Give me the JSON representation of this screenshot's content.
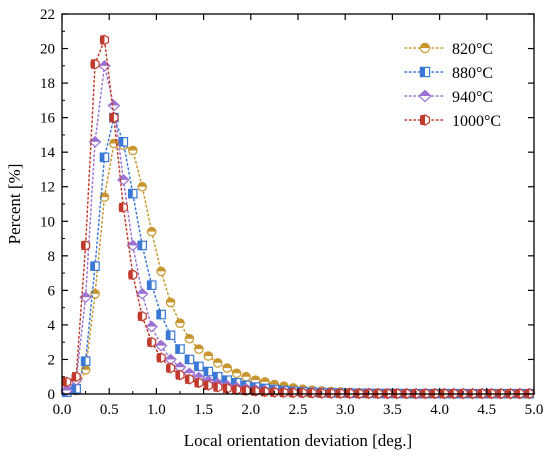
{
  "chart_data": {
    "type": "scatter",
    "xlabel": "Local orientation deviation [deg.]",
    "ylabel": "Percent [%]",
    "xlim": [
      0,
      5
    ],
    "ylim": [
      0,
      22
    ],
    "xticks": [
      "0.0",
      "0.5",
      "1.0",
      "1.5",
      "2.0",
      "2.5",
      "3.0",
      "3.5",
      "4.0",
      "4.5",
      "5.0"
    ],
    "yticks": [
      "0",
      "2",
      "4",
      "6",
      "8",
      "10",
      "12",
      "14",
      "16",
      "18",
      "20",
      "22"
    ],
    "grid": false,
    "legend_position": "top-right",
    "x": [
      0.05,
      0.15,
      0.25,
      0.35,
      0.45,
      0.55,
      0.65,
      0.75,
      0.85,
      0.95,
      1.05,
      1.15,
      1.25,
      1.35,
      1.45,
      1.55,
      1.65,
      1.75,
      1.85,
      1.95,
      2.05,
      2.15,
      2.25,
      2.35,
      2.45,
      2.55,
      2.65,
      2.75,
      2.85,
      2.95,
      3.05,
      3.15,
      3.25,
      3.35,
      3.45,
      3.55,
      3.65,
      3.75,
      3.85,
      3.95,
      4.05,
      4.15,
      4.25,
      4.35,
      4.45,
      4.55,
      4.65,
      4.75,
      4.85,
      4.95
    ],
    "series": [
      {
        "name": "820°C",
        "color": "#c8962e",
        "marker": "circle-half",
        "values": [
          0.1,
          0.2,
          1.4,
          5.8,
          11.4,
          14.5,
          14.4,
          14.1,
          12.0,
          9.4,
          7.1,
          5.3,
          4.1,
          3.2,
          2.6,
          2.2,
          1.8,
          1.5,
          1.2,
          1.0,
          0.8,
          0.7,
          0.55,
          0.45,
          0.35,
          0.28,
          0.22,
          0.18,
          0.15,
          0.12,
          0.1,
          0.08,
          0.07,
          0.06,
          0.05,
          0.05,
          0.04,
          0.04,
          0.03,
          0.03,
          0.03,
          0.02,
          0.02,
          0.02,
          0.02,
          0.02,
          0.02,
          0.02,
          0.02,
          0.02
        ]
      },
      {
        "name": "880°C",
        "color": "#3a78d6",
        "marker": "square-half",
        "values": [
          0.1,
          0.3,
          1.9,
          7.4,
          13.7,
          16.0,
          14.6,
          11.6,
          8.6,
          6.3,
          4.6,
          3.4,
          2.6,
          2.0,
          1.6,
          1.3,
          1.0,
          0.8,
          0.65,
          0.5,
          0.4,
          0.32,
          0.26,
          0.2,
          0.16,
          0.13,
          0.1,
          0.08,
          0.07,
          0.06,
          0.05,
          0.04,
          0.04,
          0.03,
          0.03,
          0.03,
          0.02,
          0.02,
          0.02,
          0.02,
          0.02,
          0.02,
          0.02,
          0.02,
          0.02,
          0.02,
          0.02,
          0.02,
          0.02,
          0.02
        ]
      },
      {
        "name": "940°C",
        "color": "#9b72d4",
        "marker": "diamond-half",
        "values": [
          0.2,
          0.8,
          5.6,
          14.6,
          19.0,
          16.7,
          12.4,
          8.6,
          5.8,
          3.9,
          2.8,
          2.0,
          1.55,
          1.2,
          0.95,
          0.75,
          0.6,
          0.48,
          0.38,
          0.3,
          0.24,
          0.19,
          0.15,
          0.12,
          0.1,
          0.08,
          0.07,
          0.06,
          0.05,
          0.04,
          0.04,
          0.03,
          0.03,
          0.03,
          0.02,
          0.02,
          0.02,
          0.02,
          0.02,
          0.02,
          0.02,
          0.02,
          0.02,
          0.02,
          0.02,
          0.02,
          0.02,
          0.02,
          0.02,
          0.02
        ]
      },
      {
        "name": "1000°C",
        "color": "#c0392b",
        "marker": "hexagon-half",
        "values": [
          0.7,
          1.0,
          8.6,
          19.1,
          20.5,
          16.0,
          10.8,
          6.9,
          4.5,
          3.0,
          2.1,
          1.5,
          1.1,
          0.85,
          0.65,
          0.5,
          0.4,
          0.32,
          0.25,
          0.2,
          0.16,
          0.13,
          0.1,
          0.08,
          0.07,
          0.06,
          0.05,
          0.04,
          0.04,
          0.03,
          0.03,
          0.02,
          0.02,
          0.02,
          0.02,
          0.02,
          0.02,
          0.02,
          0.02,
          0.02,
          0.02,
          0.02,
          0.02,
          0.02,
          0.02,
          0.02,
          0.02,
          0.02,
          0.02,
          0.02
        ]
      }
    ]
  }
}
